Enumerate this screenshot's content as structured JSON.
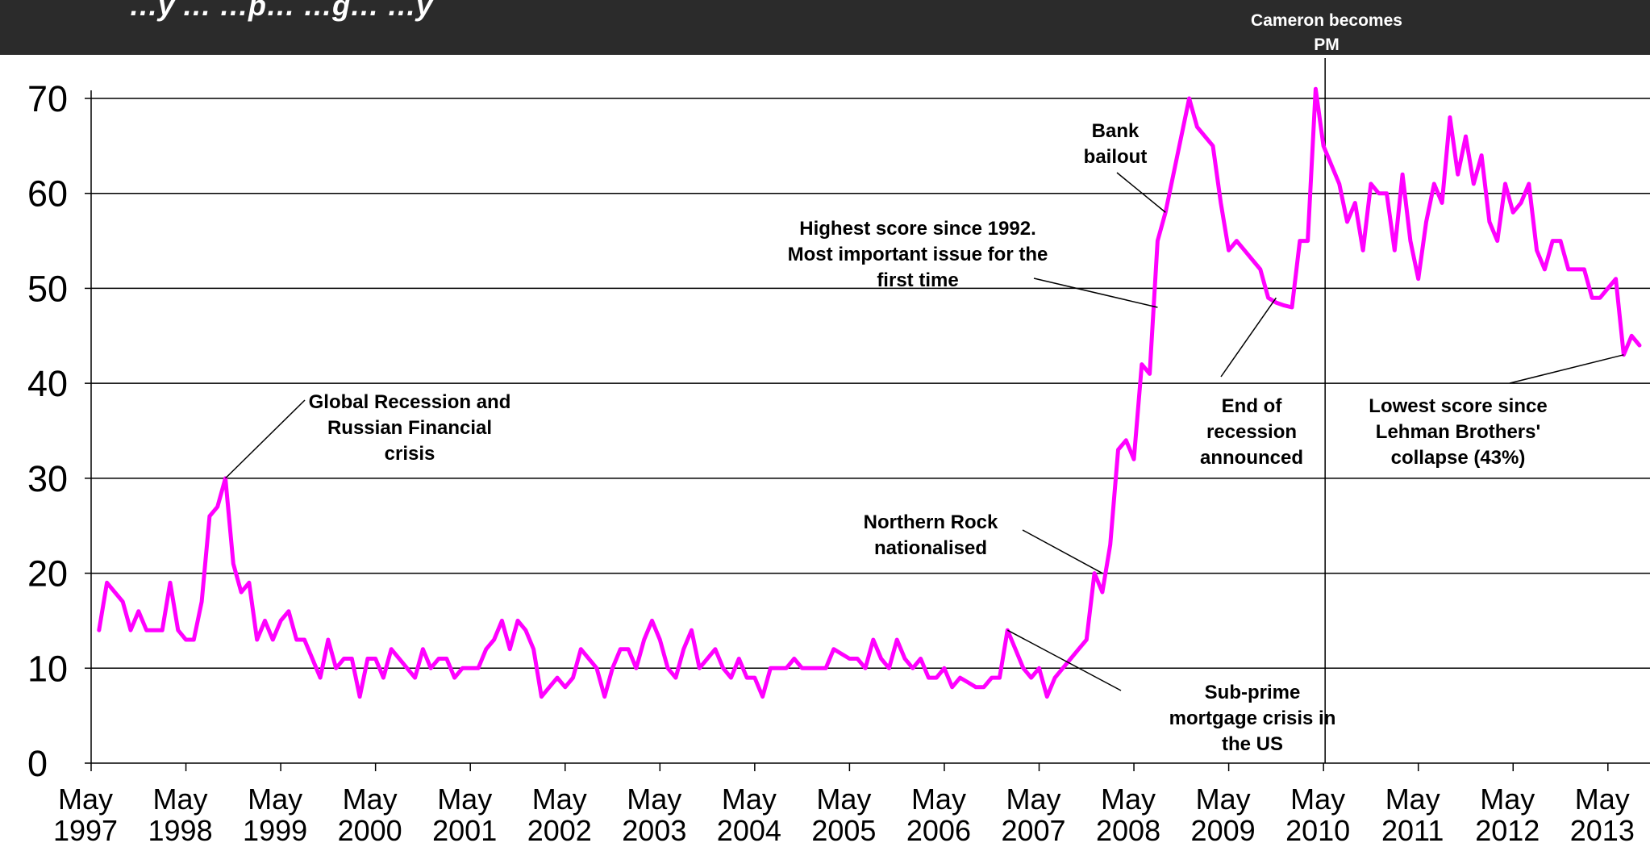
{
  "header": {
    "title": "…y … …p… …g… …y"
  },
  "chart_data": {
    "type": "line",
    "title": "",
    "xlabel": "",
    "ylabel": "",
    "ylim": [
      0,
      70
    ],
    "yticks": [
      0,
      10,
      20,
      30,
      40,
      50,
      60,
      70
    ],
    "grid": true,
    "xticks": [
      [
        "May",
        "1997"
      ],
      [
        "May",
        "1998"
      ],
      [
        "May",
        "1999"
      ],
      [
        "May",
        "2000"
      ],
      [
        "May",
        "2001"
      ],
      [
        "May",
        "2002"
      ],
      [
        "May",
        "2003"
      ],
      [
        "May",
        "2004"
      ],
      [
        "May",
        "2005"
      ],
      [
        "May",
        "2006"
      ],
      [
        "May",
        "2007"
      ],
      [
        "May",
        "2008"
      ],
      [
        "May",
        "2009"
      ],
      [
        "May",
        "2010"
      ],
      [
        "May",
        "2011"
      ],
      [
        "May",
        "2012"
      ],
      [
        "May",
        "2013"
      ]
    ],
    "series": [
      {
        "color": "#ff00ff",
        "points": [
          [
            "1997-06",
            14
          ],
          [
            "1997-07",
            19
          ],
          [
            "1997-08",
            18
          ],
          [
            "1997-09",
            17
          ],
          [
            "1997-10",
            14
          ],
          [
            "1997-11",
            16
          ],
          [
            "1997-12",
            14
          ],
          [
            "1998-01",
            14
          ],
          [
            "1998-02",
            14
          ],
          [
            "1998-03",
            19
          ],
          [
            "1998-04",
            14
          ],
          [
            "1998-05",
            13
          ],
          [
            "1998-06",
            13
          ],
          [
            "1998-07",
            17
          ],
          [
            "1998-08",
            26
          ],
          [
            "1998-09",
            27
          ],
          [
            "1998-10",
            30
          ],
          [
            "1998-11",
            21
          ],
          [
            "1998-12",
            18
          ],
          [
            "1999-01",
            19
          ],
          [
            "1999-02",
            13
          ],
          [
            "1999-03",
            15
          ],
          [
            "1999-04",
            13
          ],
          [
            "1999-05",
            15
          ],
          [
            "1999-06",
            16
          ],
          [
            "1999-07",
            13
          ],
          [
            "1999-08",
            13
          ],
          [
            "1999-09",
            11
          ],
          [
            "1999-10",
            9
          ],
          [
            "1999-11",
            13
          ],
          [
            "1999-12",
            10
          ],
          [
            "2000-01",
            11
          ],
          [
            "2000-02",
            11
          ],
          [
            "2000-03",
            7
          ],
          [
            "2000-04",
            11
          ],
          [
            "2000-05",
            11
          ],
          [
            "2000-06",
            9
          ],
          [
            "2000-07",
            12
          ],
          [
            "2000-08",
            11
          ],
          [
            "2000-09",
            10
          ],
          [
            "2000-10",
            9
          ],
          [
            "2000-11",
            12
          ],
          [
            "2000-12",
            10
          ],
          [
            "2001-01",
            11
          ],
          [
            "2001-02",
            11
          ],
          [
            "2001-03",
            9
          ],
          [
            "2001-04",
            10
          ],
          [
            "2001-05",
            10
          ],
          [
            "2001-06",
            10
          ],
          [
            "2001-07",
            12
          ],
          [
            "2001-08",
            13
          ],
          [
            "2001-09",
            15
          ],
          [
            "2001-10",
            12
          ],
          [
            "2001-11",
            15
          ],
          [
            "2001-12",
            14
          ],
          [
            "2002-01",
            12
          ],
          [
            "2002-02",
            7
          ],
          [
            "2002-03",
            8
          ],
          [
            "2002-04",
            9
          ],
          [
            "2002-05",
            8
          ],
          [
            "2002-06",
            9
          ],
          [
            "2002-07",
            12
          ],
          [
            "2002-08",
            11
          ],
          [
            "2002-09",
            10
          ],
          [
            "2002-10",
            7
          ],
          [
            "2002-11",
            10
          ],
          [
            "2002-12",
            12
          ],
          [
            "2003-01",
            12
          ],
          [
            "2003-02",
            10
          ],
          [
            "2003-03",
            13
          ],
          [
            "2003-04",
            15
          ],
          [
            "2003-05",
            13
          ],
          [
            "2003-06",
            10
          ],
          [
            "2003-07",
            9
          ],
          [
            "2003-08",
            12
          ],
          [
            "2003-09",
            14
          ],
          [
            "2003-10",
            10
          ],
          [
            "2003-11",
            11
          ],
          [
            "2003-12",
            12
          ],
          [
            "2004-01",
            10
          ],
          [
            "2004-02",
            9
          ],
          [
            "2004-03",
            11
          ],
          [
            "2004-04",
            9
          ],
          [
            "2004-05",
            9
          ],
          [
            "2004-06",
            7
          ],
          [
            "2004-07",
            10
          ],
          [
            "2004-08",
            10
          ],
          [
            "2004-09",
            10
          ],
          [
            "2004-10",
            11
          ],
          [
            "2004-11",
            10
          ],
          [
            "2004-12",
            10
          ],
          [
            "2005-01",
            10
          ],
          [
            "2005-02",
            10
          ],
          [
            "2005-03",
            12
          ],
          [
            "2005-04",
            11.5
          ],
          [
            "2005-05",
            11
          ],
          [
            "2005-06",
            11
          ],
          [
            "2005-07",
            10
          ],
          [
            "2005-08",
            13
          ],
          [
            "2005-09",
            11
          ],
          [
            "2005-10",
            10
          ],
          [
            "2005-11",
            13
          ],
          [
            "2005-12",
            11
          ],
          [
            "2006-01",
            10
          ],
          [
            "2006-02",
            11
          ],
          [
            "2006-03",
            9
          ],
          [
            "2006-04",
            9
          ],
          [
            "2006-05",
            10
          ],
          [
            "2006-06",
            8
          ],
          [
            "2006-07",
            9
          ],
          [
            "2006-08",
            8.5
          ],
          [
            "2006-09",
            8
          ],
          [
            "2006-10",
            8
          ],
          [
            "2006-11",
            9
          ],
          [
            "2006-12",
            9
          ],
          [
            "2007-01",
            14
          ],
          [
            "2007-02",
            12
          ],
          [
            "2007-03",
            10
          ],
          [
            "2007-04",
            9
          ],
          [
            "2007-05",
            10
          ],
          [
            "2007-06",
            7
          ],
          [
            "2007-07",
            9
          ],
          [
            "2007-08",
            10
          ],
          [
            "2007-09",
            11
          ],
          [
            "2007-10",
            12
          ],
          [
            "2007-11",
            13
          ],
          [
            "2007-12",
            20
          ],
          [
            "2008-01",
            18
          ],
          [
            "2008-02",
            23
          ],
          [
            "2008-03",
            33
          ],
          [
            "2008-04",
            34
          ],
          [
            "2008-05",
            32
          ],
          [
            "2008-06",
            42
          ],
          [
            "2008-07",
            41
          ],
          [
            "2008-08",
            55
          ],
          [
            "2008-09",
            58
          ],
          [
            "2008-10",
            62
          ],
          [
            "2008-11",
            66
          ],
          [
            "2008-12",
            70
          ],
          [
            "2009-01",
            67
          ],
          [
            "2009-02",
            66
          ],
          [
            "2009-03",
            65
          ],
          [
            "2009-04",
            59
          ],
          [
            "2009-05",
            54
          ],
          [
            "2009-06",
            55
          ],
          [
            "2009-07",
            54
          ],
          [
            "2009-08",
            53
          ],
          [
            "2009-09",
            52
          ],
          [
            "2009-10",
            49
          ],
          [
            "2009-11",
            48.5
          ],
          [
            "2009-12",
            48.2
          ],
          [
            "2010-01",
            48
          ],
          [
            "2010-02",
            55
          ],
          [
            "2010-03",
            55
          ],
          [
            "2010-04",
            71
          ],
          [
            "2010-05",
            65
          ],
          [
            "2010-06",
            63
          ],
          [
            "2010-07",
            61
          ],
          [
            "2010-08",
            57
          ],
          [
            "2010-09",
            59
          ],
          [
            "2010-10",
            54
          ],
          [
            "2010-11",
            61
          ],
          [
            "2010-12",
            60
          ],
          [
            "2011-01",
            60
          ],
          [
            "2011-02",
            54
          ],
          [
            "2011-03",
            62
          ],
          [
            "2011-04",
            55
          ],
          [
            "2011-05",
            51
          ],
          [
            "2011-06",
            57
          ],
          [
            "2011-07",
            61
          ],
          [
            "2011-08",
            59
          ],
          [
            "2011-09",
            68
          ],
          [
            "2011-10",
            62
          ],
          [
            "2011-11",
            66
          ],
          [
            "2011-12",
            61
          ],
          [
            "2012-01",
            64
          ],
          [
            "2012-02",
            57
          ],
          [
            "2012-03",
            55
          ],
          [
            "2012-04",
            61
          ],
          [
            "2012-05",
            58
          ],
          [
            "2012-06",
            59
          ],
          [
            "2012-07",
            61
          ],
          [
            "2012-08",
            54
          ],
          [
            "2012-09",
            52
          ],
          [
            "2012-10",
            55
          ],
          [
            "2012-11",
            55
          ],
          [
            "2012-12",
            52
          ],
          [
            "2013-01",
            52
          ],
          [
            "2013-02",
            52
          ],
          [
            "2013-03",
            49
          ],
          [
            "2013-04",
            49
          ],
          [
            "2013-05",
            50
          ],
          [
            "2013-06",
            51
          ],
          [
            "2013-07",
            43
          ],
          [
            "2013-08",
            45
          ],
          [
            "2013-09",
            44
          ]
        ]
      }
    ],
    "vline": {
      "x": "2010-05"
    },
    "annotations": [
      {
        "lines": [
          "Global Recession and",
          "Russian Financial",
          "crisis"
        ],
        "target": [
          "1998-10",
          30
        ]
      },
      {
        "lines": [
          "Northern Rock",
          "nationalised"
        ],
        "target": [
          "2008-01",
          20
        ]
      },
      {
        "lines": [
          "Highest score since 1992.",
          "Most important issue for the",
          "first time"
        ],
        "target": [
          "2008-08",
          48
        ]
      },
      {
        "lines": [
          "Bank",
          "bailout"
        ],
        "target": [
          "2008-09",
          58
        ]
      },
      {
        "lines": [
          "End of",
          "recession",
          "announced"
        ],
        "target": [
          "2009-11",
          49
        ]
      },
      {
        "lines": [
          "Sub-prime",
          "mortgage crisis in",
          "the US"
        ],
        "target": [
          "2007-01",
          14
        ]
      },
      {
        "lines": [
          "Lowest score since",
          "Lehman Brothers'",
          "collapse (43%)"
        ],
        "target": [
          "2013-07",
          43
        ]
      },
      {
        "lines": [
          "Cameron becomes",
          "PM"
        ],
        "target": [
          "2010-05",
          71
        ]
      }
    ]
  }
}
